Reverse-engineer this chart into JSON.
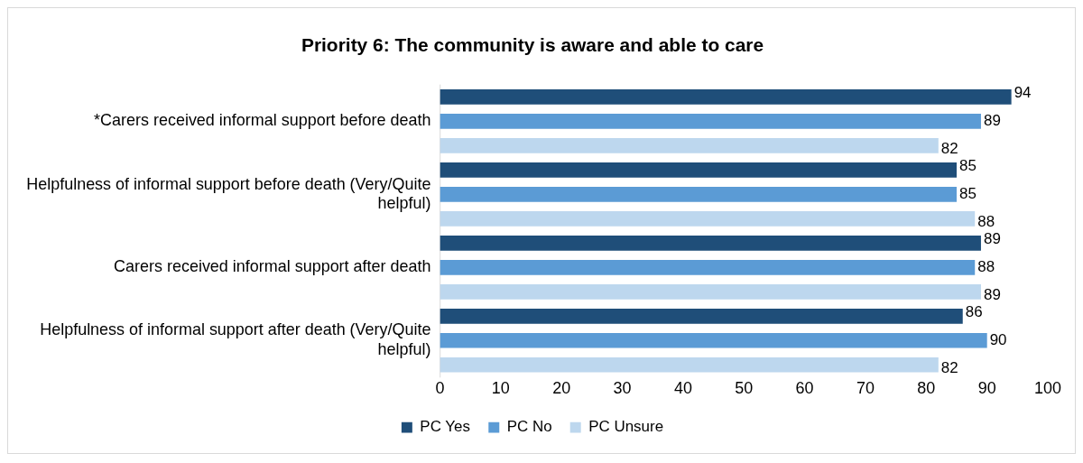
{
  "chart_data": {
    "type": "bar",
    "orientation": "horizontal",
    "title": "Priority 6: The community is aware and able to care",
    "categories": [
      "*Carers received informal support before death",
      "Helpfulness of informal support before death (Very/Quite helpful)",
      "Carers received informal support after death",
      "Helpfulness of informal support after death (Very/Quite helpful)"
    ],
    "series": [
      {
        "name": "PC Yes",
        "color": "#1f4e79",
        "values": [
          94,
          85,
          89,
          86
        ]
      },
      {
        "name": "PC No",
        "color": "#5b9bd5",
        "values": [
          89,
          85,
          88,
          90
        ]
      },
      {
        "name": "PC Unsure",
        "color": "#bdd7ee",
        "values": [
          82,
          88,
          89,
          82
        ]
      }
    ],
    "xlim": [
      0,
      100
    ],
    "xticks": [
      0,
      10,
      20,
      30,
      40,
      50,
      60,
      70,
      80,
      90,
      100
    ],
    "grid": false,
    "legend": "bottom",
    "data_labels": true
  }
}
